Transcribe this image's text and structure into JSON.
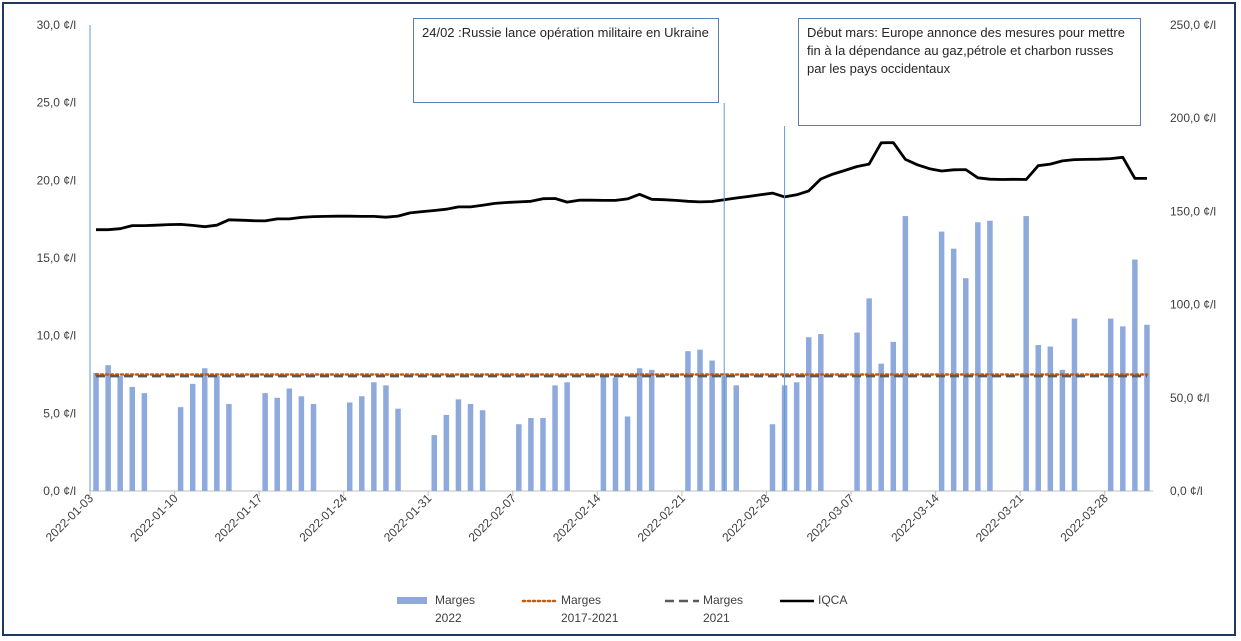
{
  "chart_data": {
    "type": "bar",
    "x": [
      "2022-01-03",
      "2022-01-04",
      "2022-01-05",
      "2022-01-06",
      "2022-01-07",
      "2022-01-08",
      "2022-01-09",
      "2022-01-10",
      "2022-01-11",
      "2022-01-12",
      "2022-01-13",
      "2022-01-14",
      "2022-01-15",
      "2022-01-16",
      "2022-01-17",
      "2022-01-18",
      "2022-01-19",
      "2022-01-20",
      "2022-01-21",
      "2022-01-22",
      "2022-01-23",
      "2022-01-24",
      "2022-01-25",
      "2022-01-26",
      "2022-01-27",
      "2022-01-28",
      "2022-01-29",
      "2022-01-30",
      "2022-01-31",
      "2022-02-01",
      "2022-02-02",
      "2022-02-03",
      "2022-02-04",
      "2022-02-05",
      "2022-02-06",
      "2022-02-07",
      "2022-02-08",
      "2022-02-09",
      "2022-02-10",
      "2022-02-11",
      "2022-02-12",
      "2022-02-13",
      "2022-02-14",
      "2022-02-15",
      "2022-02-16",
      "2022-02-17",
      "2022-02-18",
      "2022-02-19",
      "2022-02-20",
      "2022-02-21",
      "2022-02-22",
      "2022-02-23",
      "2022-02-24",
      "2022-02-25",
      "2022-02-26",
      "2022-02-27",
      "2022-02-28",
      "2022-03-01",
      "2022-03-02",
      "2022-03-03",
      "2022-03-04",
      "2022-03-05",
      "2022-03-06",
      "2022-03-07",
      "2022-03-08",
      "2022-03-09",
      "2022-03-10",
      "2022-03-11",
      "2022-03-12",
      "2022-03-13",
      "2022-03-14",
      "2022-03-15",
      "2022-03-16",
      "2022-03-17",
      "2022-03-18",
      "2022-03-19",
      "2022-03-20",
      "2022-03-21",
      "2022-03-22",
      "2022-03-23",
      "2022-03-24",
      "2022-03-25",
      "2022-03-26",
      "2022-03-27",
      "2022-03-28",
      "2022-03-29",
      "2022-03-30",
      "2022-03-31"
    ],
    "series": [
      {
        "name": "Marges\n2022",
        "type": "bar",
        "axis": "left",
        "color": "#8eaadc",
        "values": [
          7.6,
          8.1,
          7.4,
          6.7,
          6.3,
          null,
          null,
          5.4,
          6.9,
          7.9,
          7.4,
          5.6,
          null,
          null,
          6.3,
          6.0,
          6.6,
          6.1,
          5.6,
          null,
          null,
          5.7,
          6.1,
          7.0,
          6.8,
          5.3,
          null,
          null,
          3.6,
          4.9,
          5.9,
          5.6,
          5.2,
          null,
          null,
          4.3,
          4.7,
          4.7,
          6.8,
          7.0,
          null,
          null,
          7.5,
          7.3,
          4.8,
          7.9,
          7.8,
          null,
          null,
          9.0,
          9.1,
          8.4,
          7.4,
          6.8,
          null,
          null,
          4.3,
          6.8,
          7.0,
          9.9,
          10.1,
          null,
          null,
          10.2,
          12.4,
          8.2,
          9.6,
          17.7,
          null,
          null,
          16.7,
          15.6,
          13.7,
          17.3,
          17.4,
          null,
          null,
          17.7,
          9.4,
          9.3,
          7.8,
          11.1,
          null,
          null,
          11.1,
          10.6,
          14.9,
          10.7
        ]
      },
      {
        "name": "Marges\n2017-2021",
        "type": "line",
        "style": "dotted",
        "axis": "left",
        "color": "#c55a11",
        "values": [
          7.5,
          7.5,
          7.5,
          7.5,
          7.5,
          7.5,
          7.5,
          7.5,
          7.5,
          7.5,
          7.5,
          7.5,
          7.5,
          7.5,
          7.5,
          7.5,
          7.5,
          7.5,
          7.5,
          7.5,
          7.5,
          7.5,
          7.5,
          7.5,
          7.5,
          7.5,
          7.5,
          7.5,
          7.5,
          7.5,
          7.5,
          7.5,
          7.5,
          7.5,
          7.5,
          7.5,
          7.5,
          7.5,
          7.5,
          7.5,
          7.5,
          7.5,
          7.5,
          7.5,
          7.5,
          7.5,
          7.5,
          7.5,
          7.5,
          7.5,
          7.5,
          7.5,
          7.5,
          7.5,
          7.5,
          7.5,
          7.5,
          7.5,
          7.5,
          7.5,
          7.5,
          7.5,
          7.5,
          7.5,
          7.5,
          7.5,
          7.5,
          7.5,
          7.5,
          7.5,
          7.5,
          7.5,
          7.5,
          7.5,
          7.5,
          7.5,
          7.5,
          7.5,
          7.5,
          7.5,
          7.5,
          7.5,
          7.5,
          7.5,
          7.5,
          7.5,
          7.5,
          7.5
        ]
      },
      {
        "name": "Marges\n2021",
        "type": "line",
        "style": "dashed",
        "axis": "left",
        "color": "#595959",
        "values": [
          7.4,
          7.4,
          7.4,
          7.4,
          7.4,
          7.4,
          7.4,
          7.4,
          7.4,
          7.4,
          7.4,
          7.4,
          7.4,
          7.4,
          7.4,
          7.4,
          7.4,
          7.4,
          7.4,
          7.4,
          7.4,
          7.4,
          7.4,
          7.4,
          7.4,
          7.4,
          7.4,
          7.4,
          7.4,
          7.4,
          7.4,
          7.4,
          7.4,
          7.4,
          7.4,
          7.4,
          7.4,
          7.4,
          7.4,
          7.4,
          7.4,
          7.4,
          7.4,
          7.4,
          7.4,
          7.4,
          7.4,
          7.4,
          7.4,
          7.4,
          7.4,
          7.4,
          7.4,
          7.4,
          7.4,
          7.4,
          7.4,
          7.4,
          7.4,
          7.4,
          7.4,
          7.4,
          7.4,
          7.4,
          7.4,
          7.4,
          7.4,
          7.4,
          7.4,
          7.4,
          7.4,
          7.4,
          7.4,
          7.4,
          7.4,
          7.4,
          7.4,
          7.4,
          7.4,
          7.4,
          7.4,
          7.4,
          7.4,
          7.4,
          7.4,
          7.4,
          7.4,
          7.4
        ]
      },
      {
        "name": "IQCA",
        "type": "line",
        "style": "solid",
        "axis": "right",
        "color": "#000000",
        "values": [
          140.2,
          140.2,
          140.7,
          142.4,
          142.4,
          142.6,
          142.9,
          143.0,
          142.5,
          141.8,
          142.6,
          145.5,
          145.3,
          145.0,
          144.9,
          146.0,
          146.0,
          146.8,
          147.2,
          147.3,
          147.4,
          147.4,
          147.3,
          147.3,
          146.9,
          147.5,
          149.2,
          149.9,
          150.5,
          151.2,
          152.4,
          152.4,
          153.3,
          154.3,
          154.8,
          155.1,
          155.4,
          156.8,
          156.9,
          155.0,
          156.0,
          156.0,
          155.9,
          155.9,
          156.7,
          159.2,
          156.5,
          156.3,
          155.9,
          155.4,
          155.1,
          155.3,
          156.3,
          157.2,
          158.0,
          158.9,
          159.8,
          157.8,
          158.9,
          161.0,
          167.4,
          170.0,
          172.0,
          174.1,
          175.4,
          186.8,
          186.9,
          177.9,
          175.0,
          172.9,
          171.7,
          172.3,
          172.4,
          168.0,
          167.3,
          167.1,
          167.2,
          167.1,
          174.5,
          175.4,
          177.1,
          177.8,
          177.9,
          178.0,
          178.3,
          179.0,
          167.7,
          167.7
        ]
      }
    ],
    "y_left": {
      "ticks": [
        "0,0 ¢/l",
        "5,0 ¢/l",
        "10,0 ¢/l",
        "15,0 ¢/l",
        "20,0 ¢/l",
        "25,0 ¢/l",
        "30,0 ¢/l"
      ],
      "ylim": [
        0,
        30
      ]
    },
    "y_right": {
      "ticks": [
        "0,0 ¢/l",
        "50,0 ¢/l",
        "100,0 ¢/l",
        "150,0 ¢/l",
        "200,0 ¢/l",
        "250,0 ¢/l"
      ],
      "ylim": [
        0,
        250
      ]
    },
    "x_ticks": [
      "2022-01-03",
      "2022-01-10",
      "2022-01-17",
      "2022-01-24",
      "2022-01-31",
      "2022-02-07",
      "2022-02-14",
      "2022-02-21",
      "2022-02-28",
      "2022-03-07",
      "2022-03-14",
      "2022-03-21",
      "2022-03-28"
    ],
    "annotations": [
      {
        "date": "2022-02-24",
        "text": "24/02 :Russie lance opération militaire en Ukraine"
      },
      {
        "date": "2022-03-01",
        "text": "Début mars: Europe annonce des mesures pour mettre fin à la dépendance au gaz,pétrole et charbon russes par les pays occidentaux"
      }
    ],
    "legend_position": "bottom",
    "grid": false
  }
}
